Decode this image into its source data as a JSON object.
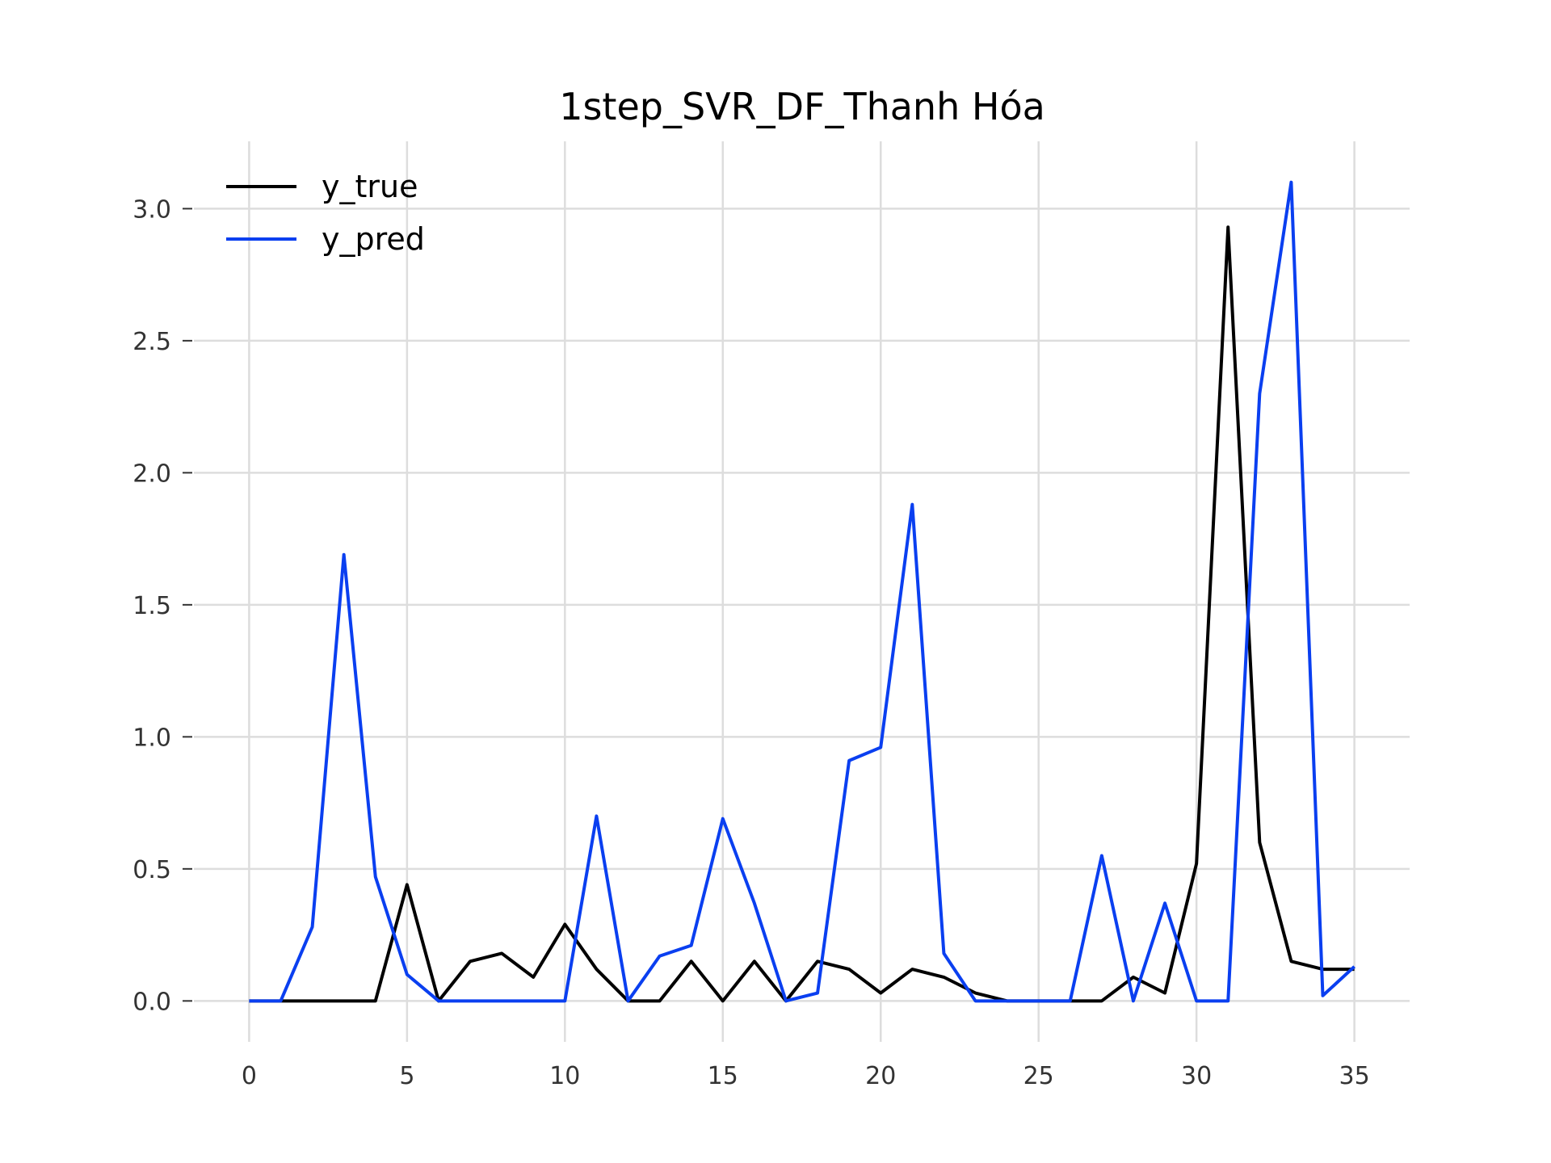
{
  "chart_data": {
    "type": "line",
    "title": "1step_SVR_DF_Thanh Hóa",
    "xlabel": "",
    "ylabel": "",
    "x": [
      0,
      1,
      2,
      3,
      4,
      5,
      6,
      7,
      8,
      9,
      10,
      11,
      12,
      13,
      14,
      15,
      16,
      17,
      18,
      19,
      20,
      21,
      22,
      23,
      24,
      25,
      26,
      27,
      28,
      29,
      30,
      31,
      32,
      33,
      34,
      35
    ],
    "xticks": [
      0,
      5,
      10,
      15,
      20,
      25,
      30,
      35
    ],
    "xtick_labels": [
      "0",
      "5",
      "10",
      "15",
      "20",
      "25",
      "30",
      "35"
    ],
    "yticks": [
      0.0,
      0.5,
      1.0,
      1.5,
      2.0,
      2.5,
      3.0
    ],
    "ytick_labels": [
      "0.0",
      "0.5",
      "1.0",
      "1.5",
      "2.0",
      "2.5",
      "3.0"
    ],
    "xlim": [
      -1.75,
      36.75
    ],
    "ylim": [
      -0.155,
      3.255
    ],
    "grid": true,
    "legend_position": "top-left",
    "series": [
      {
        "name": "y_true",
        "color": "#000000",
        "values": [
          0,
          0,
          0,
          0,
          0,
          0.44,
          0,
          0.15,
          0.18,
          0.09,
          0.29,
          0.12,
          0,
          0,
          0.15,
          0,
          0.15,
          0,
          0.15,
          0.12,
          0.03,
          0.12,
          0.09,
          0.03,
          0,
          0,
          0,
          0,
          0.09,
          0.03,
          0.52,
          2.93,
          0.6,
          0.15,
          0.12,
          0.12
        ]
      },
      {
        "name": "y_pred",
        "color": "#0a3ff0",
        "values": [
          0,
          0,
          0.28,
          1.69,
          0.47,
          0.1,
          0,
          0,
          0,
          0,
          0,
          0.7,
          0,
          0.17,
          0.21,
          0.69,
          0.37,
          0,
          0.03,
          0.91,
          0.96,
          1.88,
          0.18,
          0,
          0,
          0,
          0,
          0.55,
          0,
          0.37,
          0,
          0,
          2.3,
          3.1,
          0.02,
          0.13
        ]
      }
    ]
  }
}
